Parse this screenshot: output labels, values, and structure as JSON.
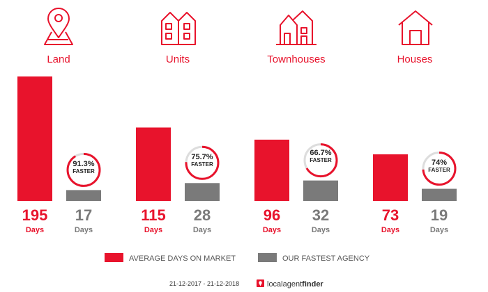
{
  "chart_data": {
    "type": "bar",
    "categories": [
      "Land",
      "Units",
      "Townhouses",
      "Houses"
    ],
    "series": [
      {
        "name": "AVERAGE DAYS ON MARKET",
        "color": "#e8132c",
        "values": [
          195,
          115,
          96,
          73
        ]
      },
      {
        "name": "OUR FASTEST AGENCY",
        "color": "#7a7a7a",
        "values": [
          17,
          28,
          32,
          19
        ]
      }
    ],
    "percent_faster": [
      "91.3%",
      "75.7%",
      "66.7%",
      "74%"
    ],
    "percent_faster_values": [
      91.3,
      75.7,
      66.7,
      74
    ],
    "faster_label": "FASTER",
    "unit_label": "Days",
    "ylim": [
      0,
      195
    ],
    "icons": [
      "map-pin-icon",
      "units-icon",
      "townhouses-icon",
      "house-icon"
    ]
  },
  "footer": {
    "date_range": "21-12-2017 - 21-12-2018",
    "brand_light": "localagent",
    "brand_bold": "finder"
  },
  "colors": {
    "accent": "#e8132c",
    "grey": "#7a7a7a",
    "ring_track": "#dddddd"
  }
}
